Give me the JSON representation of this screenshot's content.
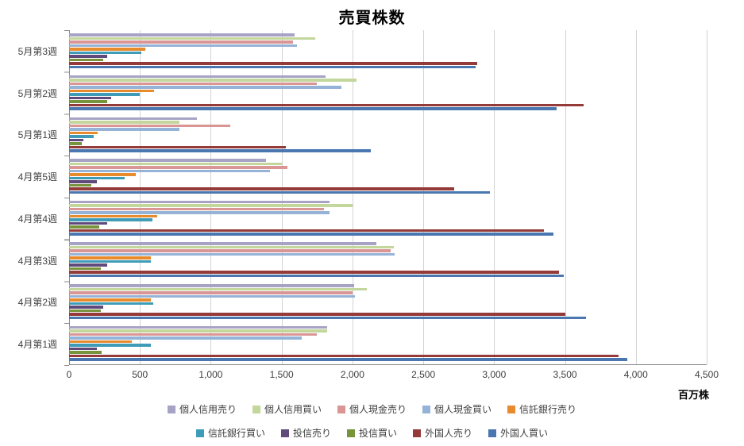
{
  "title": "売買株数",
  "axis": {
    "unit_label": "百万株",
    "xticklabels": [
      "0",
      "500",
      "1,000",
      "1,500",
      "2,000",
      "2,500",
      "3,000",
      "3,500",
      "4,000",
      "4,500"
    ]
  },
  "chart_data": {
    "type": "bar",
    "orientation": "horizontal",
    "title": "売買株数",
    "unit": "百万株",
    "xlim": [
      0,
      4500
    ],
    "xtick_interval": 500,
    "grid": true,
    "legend_position": "bottom",
    "legend_items_per_row": 5,
    "categories": [
      "5月第3週",
      "5月第2週",
      "5月第1週",
      "4月第5週",
      "4月第4週",
      "4月第3週",
      "4月第2週",
      "4月第1週"
    ],
    "series": [
      {
        "name": "個人信用売り",
        "color": "#A6A3C5",
        "values": [
          1590,
          1810,
          900,
          1390,
          1840,
          2170,
          2010,
          1820
        ]
      },
      {
        "name": "個人信用買い",
        "color": "#C3D69B",
        "values": [
          1740,
          2030,
          780,
          1500,
          2000,
          2290,
          2100,
          1820
        ]
      },
      {
        "name": "個人現金売り",
        "color": "#D99694",
        "values": [
          1580,
          1750,
          1140,
          1540,
          1800,
          2270,
          2000,
          1750
        ]
      },
      {
        "name": "個人現金買い",
        "color": "#95B3D7",
        "values": [
          1610,
          1920,
          780,
          1420,
          1840,
          2300,
          2020,
          1640
        ]
      },
      {
        "name": "信託銀行売り",
        "color": "#E78B2D",
        "values": [
          540,
          600,
          200,
          470,
          620,
          580,
          580,
          440
        ]
      },
      {
        "name": "信託銀行買い",
        "color": "#3E9CB8",
        "values": [
          510,
          500,
          175,
          390,
          590,
          575,
          595,
          575
        ]
      },
      {
        "name": "投信売り",
        "color": "#604A7B",
        "values": [
          270,
          295,
          100,
          195,
          270,
          270,
          240,
          195
        ]
      },
      {
        "name": "投信買い",
        "color": "#77933C",
        "values": [
          240,
          270,
          90,
          155,
          215,
          225,
          225,
          230
        ]
      },
      {
        "name": "外国人売り",
        "color": "#943A38",
        "values": [
          2880,
          3630,
          1530,
          2720,
          3350,
          3460,
          3500,
          3880
        ]
      },
      {
        "name": "外国人買い",
        "color": "#4A77B0",
        "values": [
          2870,
          3440,
          2130,
          2970,
          3420,
          3490,
          3650,
          3940
        ]
      }
    ]
  }
}
